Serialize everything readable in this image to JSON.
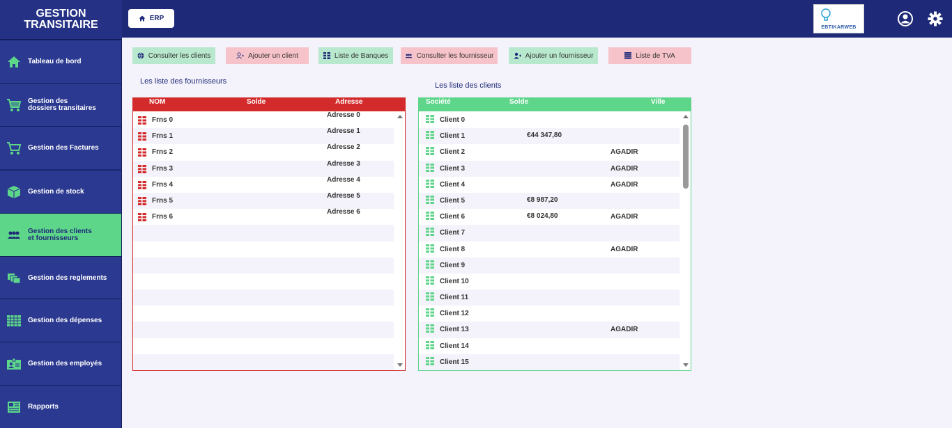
{
  "brand": {
    "line1": "GESTION",
    "line2": "TRANSITAIRE"
  },
  "topbar": {
    "erp_label": "ERP",
    "logo_text": "EBTIKARWEB"
  },
  "sidebar": {
    "items": [
      {
        "line1": "Tableau de bord",
        "line2": "",
        "icon": "home-icon"
      },
      {
        "line1": "Gestion des",
        "line2": "dossiers transitaires",
        "icon": "cart-icon"
      },
      {
        "line1": "Gestion des Factures",
        "line2": "",
        "icon": "cart-outline-icon"
      },
      {
        "line1": "Gestion de stock",
        "line2": "",
        "icon": "box-icon"
      },
      {
        "line1": "Gestion des clients",
        "line2": "et fournisseurs",
        "icon": "users-icon"
      },
      {
        "line1": "Gestion des reglements",
        "line2": "",
        "icon": "payments-icon"
      },
      {
        "line1": "Gestion des dépenses",
        "line2": "",
        "icon": "table-icon"
      },
      {
        "line1": "Gestion des employés",
        "line2": "",
        "icon": "id-card-icon"
      },
      {
        "line1": "Rapports",
        "line2": "",
        "icon": "report-icon"
      }
    ]
  },
  "actions": [
    {
      "label": "Consulter les clients"
    },
    {
      "label": "Ajouter un client"
    },
    {
      "label": "Liste de Banques"
    },
    {
      "label": "Consulter les fournisseur"
    },
    {
      "label": "Ajouter un fournisseur"
    },
    {
      "label": "Liste de TVA"
    }
  ],
  "suppliers": {
    "title": "Les liste des fournisseurs",
    "headers": {
      "name": "NOM FOURNISSEUR",
      "balance": "Solde",
      "address": "Adresse"
    },
    "rows": [
      {
        "name": "Frns 0",
        "address": "Adresse 0"
      },
      {
        "name": "Frns 1",
        "address": "Adresse 1"
      },
      {
        "name": "Frns 2",
        "address": "Adresse 2"
      },
      {
        "name": "Frns 3",
        "address": "Adresse 3"
      },
      {
        "name": "Frns 4",
        "address": "Adresse 4"
      },
      {
        "name": "Frns 5",
        "address": "Adresse 5"
      },
      {
        "name": "Frns 6",
        "address": "Adresse 6"
      }
    ]
  },
  "clients": {
    "title": "Les liste des clients",
    "headers": {
      "company": "Société",
      "balance": "Solde",
      "city": "Ville"
    },
    "rows": [
      {
        "name": "Client 0",
        "balance": "",
        "city": ""
      },
      {
        "name": "Client 1",
        "balance": "€44 347,80",
        "city": ""
      },
      {
        "name": "Client 2",
        "balance": "",
        "city": "AGADIR"
      },
      {
        "name": "Client 3",
        "balance": "",
        "city": "AGADIR"
      },
      {
        "name": "Client 4",
        "balance": "",
        "city": "AGADIR"
      },
      {
        "name": "Client 5",
        "balance": "€8 987,20",
        "city": ""
      },
      {
        "name": "Client 6",
        "balance": "€8 024,80",
        "city": "AGADIR"
      },
      {
        "name": "Client 7",
        "balance": "",
        "city": ""
      },
      {
        "name": "Client 8",
        "balance": "",
        "city": "AGADIR"
      },
      {
        "name": "Client 9",
        "balance": "",
        "city": ""
      },
      {
        "name": "Client 10",
        "balance": "",
        "city": ""
      },
      {
        "name": "Client 11",
        "balance": "",
        "city": ""
      },
      {
        "name": "Client 12",
        "balance": "",
        "city": ""
      },
      {
        "name": "Client 13",
        "balance": "",
        "city": "AGADIR"
      },
      {
        "name": "Client 14",
        "balance": "",
        "city": ""
      },
      {
        "name": "Client 15",
        "balance": "",
        "city": ""
      }
    ]
  },
  "colors": {
    "navy": "#1e2a78",
    "active_green": "#5dd68a",
    "red": "#d32b2b"
  }
}
